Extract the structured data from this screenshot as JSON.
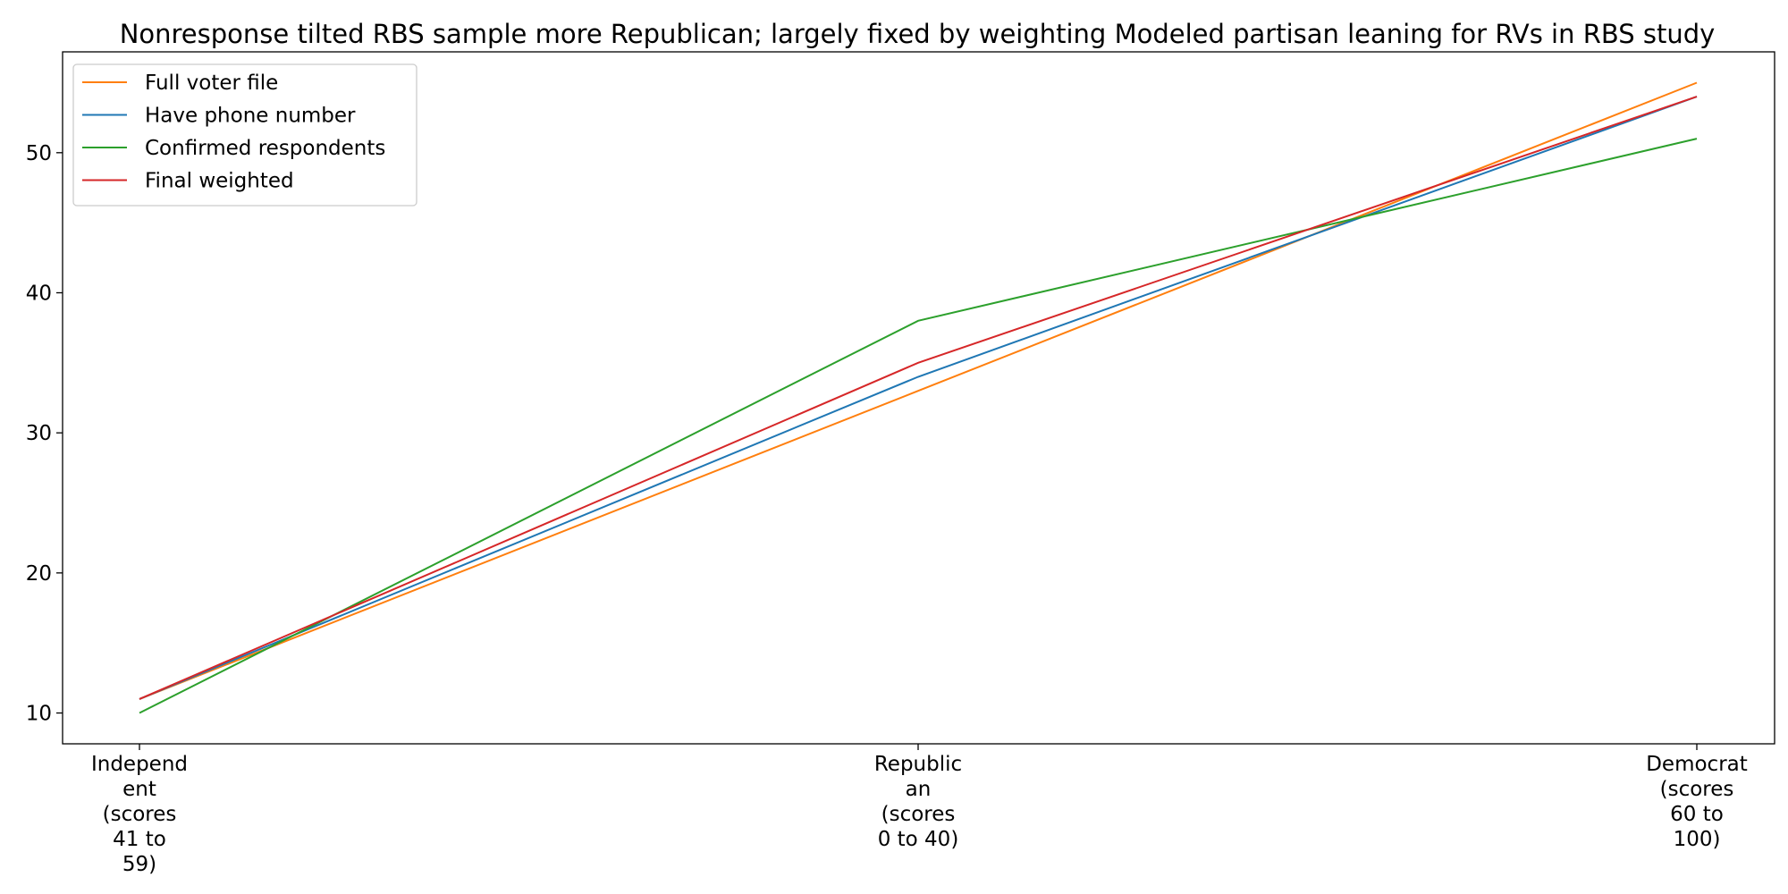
{
  "chart_data": {
    "type": "line",
    "title": "Nonresponse tilted RBS sample more Republican; largely fixed by weighting Modeled partisan leaning for RVs in RBS study",
    "xlabel": "",
    "ylabel": "",
    "categories": [
      [
        "Independ",
        "ent",
        "(scores",
        "41 to",
        "59)"
      ],
      [
        "Republic",
        "an",
        "(scores",
        "0 to 40)"
      ],
      [
        "Democrat",
        "(scores",
        "60 to",
        "100)"
      ]
    ],
    "series": [
      {
        "name": "Full voter file",
        "color": "#ff7f0e",
        "values": [
          11,
          33,
          55
        ]
      },
      {
        "name": "Have phone number",
        "color": "#1f77b4",
        "values": [
          11,
          34,
          54
        ]
      },
      {
        "name": "Confirmed respondents",
        "color": "#2ca02c",
        "values": [
          10,
          38,
          51
        ]
      },
      {
        "name": "Final weighted",
        "color": "#d62728",
        "values": [
          11,
          35,
          54
        ]
      }
    ],
    "yticks": [
      10,
      20,
      30,
      40,
      50
    ],
    "ylim": [
      7.8,
      57.2
    ],
    "grid": false,
    "legend_position": "top-left"
  }
}
